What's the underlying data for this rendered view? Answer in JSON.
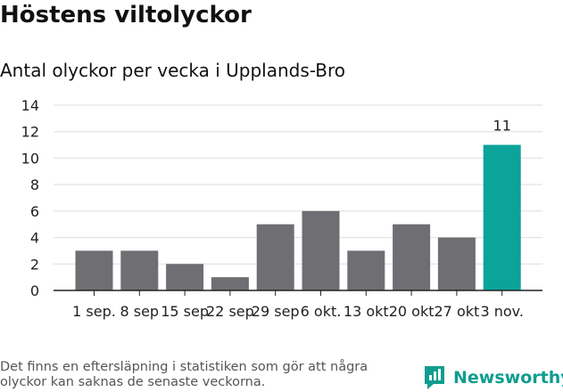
{
  "title": "Höstens viltolyckor",
  "subtitle": "Antal olyckor per vecka i Upplands-Bro",
  "footer": {
    "note": "Det finns en eftersläpning i statistiken som gör att några olyckor kan saknas de senaste veckorna.",
    "brand": "Newsworthy",
    "brand_icon": "newsworthy-logo-icon"
  },
  "colors": {
    "bar": "#6f6e73",
    "highlight": "#0ba39a",
    "brand": "#0f9d8f",
    "grid": "#dddddd",
    "axis": "#222222"
  },
  "chart_data": {
    "type": "bar",
    "title": "",
    "xlabel": "",
    "ylabel": "",
    "categories": [
      "1 sep.",
      "8 sep",
      "15 sep",
      "22 sep",
      "29 sep",
      "6 okt.",
      "13 okt",
      "20 okt",
      "27 okt",
      "3 nov."
    ],
    "values": [
      3,
      3,
      2,
      1,
      5,
      6,
      3,
      5,
      4,
      11
    ],
    "highlight_index": 9,
    "data_labels": [
      {
        "index": 9,
        "text": "11"
      }
    ],
    "ylim": [
      0,
      14
    ],
    "yticks": [
      0,
      2,
      4,
      6,
      8,
      10,
      12,
      14
    ],
    "grid": true,
    "legend": "none"
  }
}
